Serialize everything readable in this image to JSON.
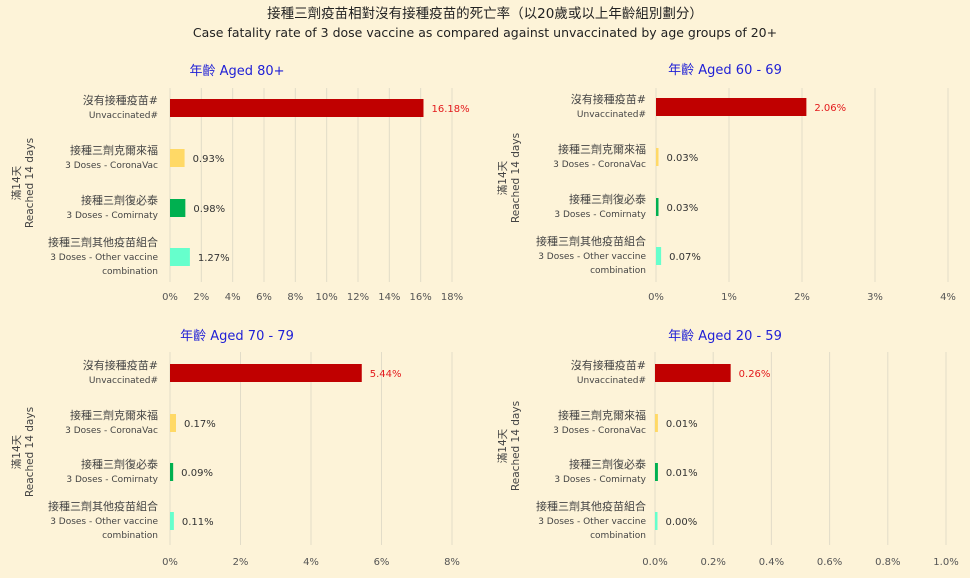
{
  "title_zh": "接種三劑疫苗相對沒有接種疫苗的死亡率（以20歲或以上年齡組別劃分）",
  "title_en": "Case fatality rate of 3 dose vaccine as compared against unvaccinated by age groups of 20+",
  "colors": {
    "unvaccinated": "#c00000",
    "coronavac": "#ffd966",
    "comirnaty": "#00b050",
    "other": "#66ffcc",
    "panel_title": "#1f1fd6",
    "label_red": "#e31a1c"
  },
  "categories": [
    {
      "zh": "沒有接種疫苗#",
      "en": [
        "Unvaccinated#"
      ]
    },
    {
      "zh": "接種三劑克爾來福",
      "en": [
        "3 Doses - CoronaVac"
      ]
    },
    {
      "zh": "接種三劑復必泰",
      "en": [
        "3 Doses - Comirnaty"
      ]
    },
    {
      "zh": "接種三劑其他疫苗組合",
      "en": [
        "3 Doses - Other vaccine",
        "combination"
      ]
    }
  ],
  "ylabel": {
    "zh": "滿14天",
    "en": "Reached 14 days"
  },
  "chart_data": [
    {
      "type": "bar",
      "orientation": "horizontal",
      "title": "年齡 Aged 80+",
      "values": [
        16.18,
        0.93,
        0.98,
        1.27
      ],
      "labels": [
        "16.18%",
        "0.93%",
        "0.98%",
        "1.27%"
      ],
      "xlim": [
        0,
        18
      ],
      "xticks": [
        0,
        2,
        4,
        6,
        8,
        10,
        12,
        14,
        16,
        18
      ],
      "xtick_labels": [
        "0%",
        "2%",
        "4%",
        "6%",
        "8%",
        "10%",
        "12%",
        "14%",
        "16%",
        "18%"
      ]
    },
    {
      "type": "bar",
      "orientation": "horizontal",
      "title": "年齡 Aged 60 - 69",
      "values": [
        2.06,
        0.03,
        0.03,
        0.07
      ],
      "labels": [
        "2.06%",
        "0.03%",
        "0.03%",
        "0.07%"
      ],
      "xlim": [
        0,
        4
      ],
      "xticks": [
        0,
        1,
        2,
        3,
        4
      ],
      "xtick_labels": [
        "0%",
        "1%",
        "2%",
        "3%",
        "4%"
      ]
    },
    {
      "type": "bar",
      "orientation": "horizontal",
      "title": "年齡 Aged 70 - 79",
      "values": [
        5.44,
        0.17,
        0.09,
        0.11
      ],
      "labels": [
        "5.44%",
        "0.17%",
        "0.09%",
        "0.11%"
      ],
      "xlim": [
        0,
        8
      ],
      "xticks": [
        0,
        2,
        4,
        6,
        8
      ],
      "xtick_labels": [
        "0%",
        "2%",
        "4%",
        "6%",
        "8%"
      ]
    },
    {
      "type": "bar",
      "orientation": "horizontal",
      "title": "年齡 Aged 20 - 59",
      "values": [
        0.26,
        0.01,
        0.01,
        0.0
      ],
      "labels": [
        "0.26%",
        "0.01%",
        "0.01%",
        "0.00%"
      ],
      "xlim": [
        0,
        1
      ],
      "xticks": [
        0,
        0.2,
        0.4,
        0.6,
        0.8,
        1.0
      ],
      "xtick_labels": [
        "0.0%",
        "0.2%",
        "0.4%",
        "0.6%",
        "0.8%",
        "1.0%"
      ]
    }
  ]
}
